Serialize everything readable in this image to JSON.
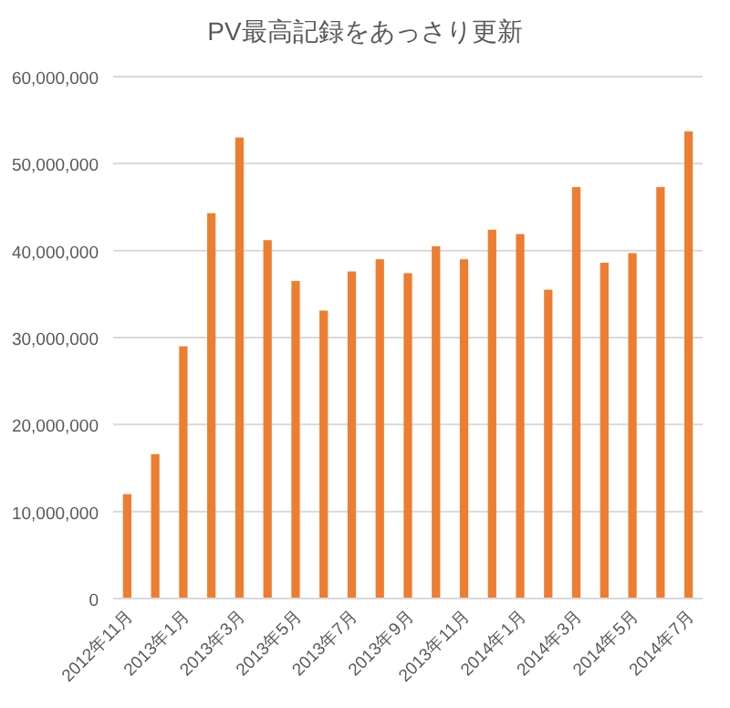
{
  "chart_data": {
    "type": "bar",
    "title": "PV最高記録をあっさり更新",
    "categories": [
      "2012年11月",
      null,
      "2013年1月",
      null,
      "2013年3月",
      null,
      "2013年5月",
      null,
      "2013年7月",
      null,
      "2013年9月",
      null,
      "2013年11月",
      null,
      "2014年1月",
      null,
      "2014年3月",
      null,
      "2014年5月",
      null,
      "2014年7月"
    ],
    "values": [
      12000000,
      16600000,
      29000000,
      44300000,
      53000000,
      41200000,
      36500000,
      33100000,
      37600000,
      39000000,
      37400000,
      40500000,
      39000000,
      42400000,
      41900000,
      35500000,
      47300000,
      38600000,
      39700000,
      47300000,
      53700000
    ],
    "color": "#ed7d31",
    "ylim": [
      0,
      60000000
    ],
    "yticks": [
      {
        "value": 0,
        "label": "0"
      },
      {
        "value": 10000000,
        "label": "10,000,000"
      },
      {
        "value": 20000000,
        "label": "20,000,000"
      },
      {
        "value": 30000000,
        "label": "30,000,000"
      },
      {
        "value": 40000000,
        "label": "40,000,000"
      },
      {
        "value": 50000000,
        "label": "50,000,000"
      },
      {
        "value": 60000000,
        "label": "60,000,000"
      }
    ],
    "grid": "y"
  }
}
